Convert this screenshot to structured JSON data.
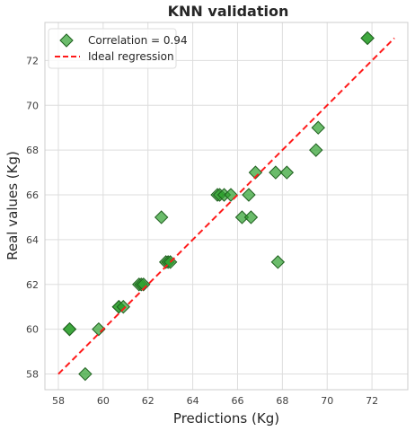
{
  "chart_data": {
    "type": "scatter",
    "title": "KNN validation",
    "xlabel": "Predictions (Kg)",
    "ylabel": "Real values (Kg)",
    "xlim": [
      57.4,
      73.6
    ],
    "ylim": [
      57.3,
      73.7
    ],
    "xticks": [
      58,
      60,
      62,
      64,
      66,
      68,
      70,
      72
    ],
    "yticks": [
      58,
      60,
      62,
      64,
      66,
      68,
      70,
      72
    ],
    "grid": true,
    "legend_position": "top-left",
    "series": [
      {
        "name": "Correlation = 0.94",
        "kind": "scatter",
        "marker": "diamond",
        "color": "#2ca02c",
        "points": [
          {
            "x": 58.5,
            "y": 60
          },
          {
            "x": 58.5,
            "y": 60
          },
          {
            "x": 59.2,
            "y": 58
          },
          {
            "x": 59.8,
            "y": 60
          },
          {
            "x": 60.7,
            "y": 61
          },
          {
            "x": 60.7,
            "y": 61
          },
          {
            "x": 60.9,
            "y": 61
          },
          {
            "x": 61.6,
            "y": 62
          },
          {
            "x": 61.7,
            "y": 62
          },
          {
            "x": 61.8,
            "y": 62
          },
          {
            "x": 62.6,
            "y": 65
          },
          {
            "x": 62.8,
            "y": 63
          },
          {
            "x": 62.9,
            "y": 63
          },
          {
            "x": 63.0,
            "y": 63
          },
          {
            "x": 65.1,
            "y": 66
          },
          {
            "x": 65.2,
            "y": 66
          },
          {
            "x": 65.4,
            "y": 66
          },
          {
            "x": 65.7,
            "y": 66
          },
          {
            "x": 66.2,
            "y": 65
          },
          {
            "x": 66.5,
            "y": 66
          },
          {
            "x": 66.6,
            "y": 65
          },
          {
            "x": 66.8,
            "y": 67
          },
          {
            "x": 67.7,
            "y": 67
          },
          {
            "x": 67.8,
            "y": 63
          },
          {
            "x": 68.2,
            "y": 67
          },
          {
            "x": 69.5,
            "y": 68
          },
          {
            "x": 69.6,
            "y": 69
          },
          {
            "x": 71.8,
            "y": 73
          },
          {
            "x": 71.8,
            "y": 73
          }
        ]
      },
      {
        "name": "Ideal regression",
        "kind": "line",
        "style": "dashed",
        "color": "#ff1a1a",
        "points": [
          {
            "x": 58,
            "y": 58
          },
          {
            "x": 73,
            "y": 73
          }
        ]
      }
    ]
  }
}
